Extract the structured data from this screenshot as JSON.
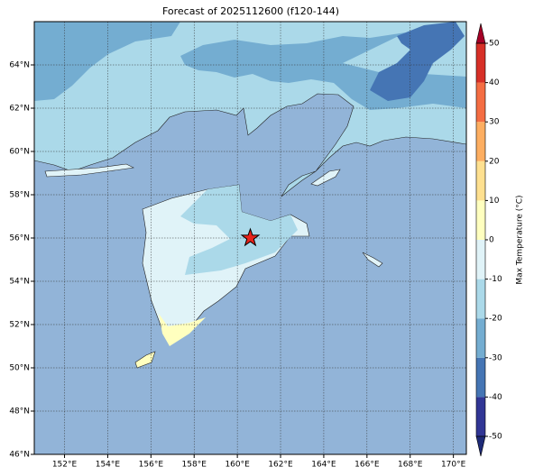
{
  "map": {
    "title": "Forecast of 2025112600 (f120-144)",
    "xlim": [
      150.6,
      170.6
    ],
    "ylim": [
      46,
      66
    ],
    "lon_ticks": [
      {
        "value": 152,
        "label": "152°E"
      },
      {
        "value": 154,
        "label": "154°E"
      },
      {
        "value": 156,
        "label": "156°E"
      },
      {
        "value": 158,
        "label": "158°E"
      },
      {
        "value": 160,
        "label": "160°E"
      },
      {
        "value": 162,
        "label": "162°E"
      },
      {
        "value": 164,
        "label": "164°E"
      },
      {
        "value": 166,
        "label": "166°E"
      },
      {
        "value": 168,
        "label": "168°E"
      },
      {
        "value": 170,
        "label": "170°E"
      }
    ],
    "lat_ticks": [
      {
        "value": 46,
        "label": "46°N"
      },
      {
        "value": 48,
        "label": "48°N"
      },
      {
        "value": 50,
        "label": "50°N"
      },
      {
        "value": 52,
        "label": "52°N"
      },
      {
        "value": 54,
        "label": "54°N"
      },
      {
        "value": 56,
        "label": "56°N"
      },
      {
        "value": 58,
        "label": "58°N"
      },
      {
        "value": 60,
        "label": "60°N"
      },
      {
        "value": 62,
        "label": "62°N"
      },
      {
        "value": 64,
        "label": "64°N"
      }
    ],
    "grid": true,
    "marker": {
      "lon": 160.6,
      "lat": 56,
      "color": "#e8231b"
    },
    "colorbar": {
      "label": "Max Temperature (°C)",
      "lim": [
        -50,
        50
      ],
      "ticks": [
        -50,
        -40,
        -30,
        -20,
        -10,
        0,
        10,
        20,
        30,
        40,
        50
      ],
      "colors": [
        "#313695",
        "#4575b4",
        "#74add1",
        "#abd9e9",
        "#e0f3f8",
        "#ffffbf",
        "#fee090",
        "#fdae61",
        "#f46d43",
        "#d73027"
      ],
      "under_color": "#1e2a78",
      "over_color": "#a50026"
    }
  }
}
